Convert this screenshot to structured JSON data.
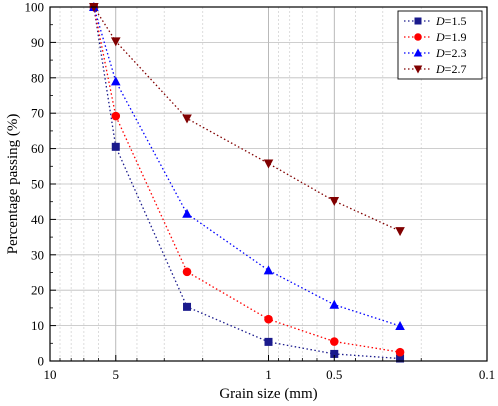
{
  "chart_data": {
    "type": "line",
    "x_scale": "log",
    "x_reversed": true,
    "xlim": [
      10,
      0.1
    ],
    "ylim": [
      0,
      100
    ],
    "xlabel": "Grain size (mm)",
    "ylabel": "Percentage passing (%)",
    "x_ticks": [
      {
        "value": 10,
        "label": "10"
      },
      {
        "value": 5,
        "label": "5"
      },
      {
        "value": 1,
        "label": "1"
      },
      {
        "value": 0.5,
        "label": "0.5"
      },
      {
        "value": 0.1,
        "label": "0.1"
      }
    ],
    "y_ticks": [
      0,
      10,
      20,
      30,
      40,
      50,
      60,
      70,
      80,
      90,
      100
    ],
    "grid": true,
    "legend_position": "top-right",
    "x": [
      6.3,
      5,
      2.36,
      1,
      0.5,
      0.25
    ],
    "series": [
      {
        "name_main": "D",
        "name_suffix": "=1.5",
        "marker": "square",
        "color": "#1a1a8c",
        "values": [
          100,
          60.5,
          15.3,
          5.4,
          2.0,
          0.7
        ]
      },
      {
        "name_main": "D",
        "name_suffix": "=1.9",
        "marker": "circle",
        "color": "#ff0000",
        "values": [
          100,
          69.2,
          25.2,
          11.8,
          5.5,
          2.5
        ]
      },
      {
        "name_main": "D",
        "name_suffix": "=2.3",
        "marker": "triangle-up",
        "color": "#0000ff",
        "values": [
          100,
          79.0,
          41.6,
          25.6,
          15.9,
          9.9
        ]
      },
      {
        "name_main": "D",
        "name_suffix": "=2.7",
        "marker": "triangle-down",
        "color": "#800000",
        "values": [
          100,
          90.3,
          68.5,
          55.8,
          45.2,
          36.7
        ]
      }
    ]
  }
}
